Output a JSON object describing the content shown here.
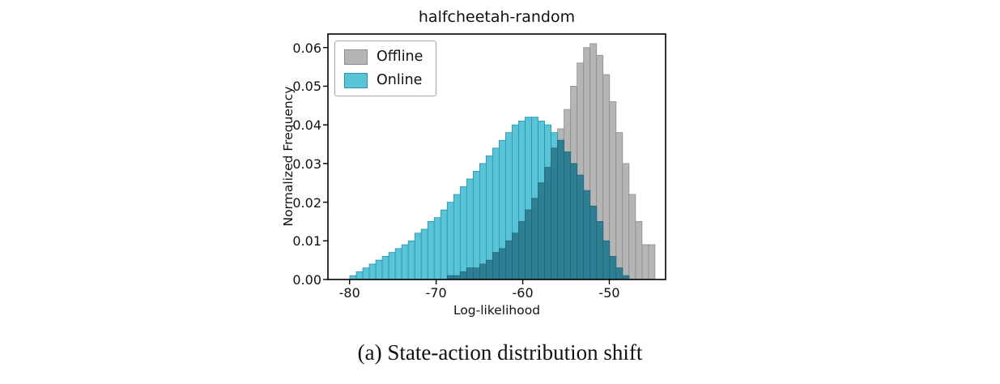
{
  "caption": "(a) State-action distribution shift",
  "chart_data": {
    "type": "histogram",
    "title": "halfcheetah-random",
    "xlabel": "Log-likelihood",
    "ylabel": "Normalized Frequency",
    "xlim": [
      -82.5,
      -43.5
    ],
    "ylim": [
      0,
      0.0635
    ],
    "x_ticks": [
      -80,
      -70,
      -60,
      -50
    ],
    "y_ticks": [
      0.0,
      0.01,
      0.02,
      0.03,
      0.04,
      0.05,
      0.06
    ],
    "grid": false,
    "legend_position": "upper left",
    "bin_width": 0.75,
    "bin_centers": [
      -79.6,
      -78.85,
      -78.1,
      -77.35,
      -76.6,
      -75.85,
      -75.1,
      -74.35,
      -73.6,
      -72.85,
      -72.1,
      -71.35,
      -70.6,
      -69.85,
      -69.1,
      -68.35,
      -67.6,
      -66.85,
      -66.1,
      -65.35,
      -64.6,
      -63.85,
      -63.1,
      -62.35,
      -61.6,
      -60.85,
      -60.1,
      -59.35,
      -58.6,
      -57.85,
      -57.1,
      -56.35,
      -55.6,
      -54.85,
      -54.1,
      -53.35,
      -52.6,
      -51.85,
      -51.1,
      -50.35,
      -49.6,
      -48.85,
      -48.1,
      -47.35,
      -46.6,
      -45.85,
      -45.1,
      -44.35
    ],
    "series": [
      {
        "name": "Offline",
        "color": "#b5b5b5",
        "edge_color": "#8c8c8c",
        "values": [
          0,
          0,
          0,
          0,
          0,
          0,
          0,
          0,
          0,
          0,
          0,
          0,
          0,
          0,
          0,
          0.001,
          0.001,
          0.002,
          0.003,
          0.003,
          0.004,
          0.005,
          0.007,
          0.008,
          0.01,
          0.012,
          0.015,
          0.018,
          0.021,
          0.025,
          0.029,
          0.034,
          0.039,
          0.044,
          0.05,
          0.056,
          0.06,
          0.061,
          0.058,
          0.053,
          0.046,
          0.038,
          0.03,
          0.022,
          0.015,
          0.009,
          0.009,
          0
        ]
      },
      {
        "name": "Online",
        "color": "#59c4d7",
        "edge_color": "#2b93a8",
        "values": [
          0.001,
          0.002,
          0.003,
          0.004,
          0.005,
          0.006,
          0.007,
          0.008,
          0.009,
          0.01,
          0.012,
          0.013,
          0.015,
          0.016,
          0.018,
          0.02,
          0.022,
          0.024,
          0.026,
          0.028,
          0.03,
          0.032,
          0.034,
          0.036,
          0.038,
          0.04,
          0.041,
          0.042,
          0.042,
          0.041,
          0.04,
          0.038,
          0.036,
          0.033,
          0.03,
          0.027,
          0.023,
          0.019,
          0.015,
          0.01,
          0.006,
          0.003,
          0.001,
          0,
          0,
          0,
          0,
          0
        ]
      }
    ],
    "overlap_color": "#2e7f94",
    "overlap_edge_color": "#24667a",
    "axis_color": "#000000"
  }
}
